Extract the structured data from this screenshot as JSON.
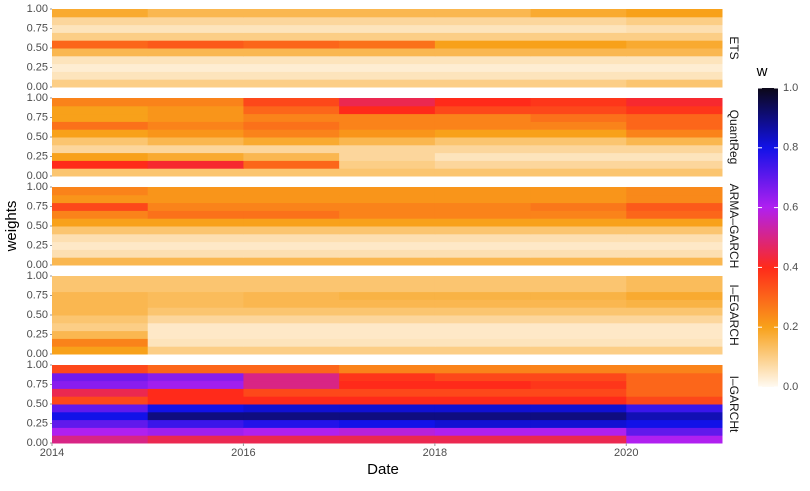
{
  "chart_data": {
    "type": "heatmap",
    "x_label": "Date",
    "y_label": "weights",
    "legend_title": "w",
    "x_bins": [
      2014,
      2015,
      2016,
      2017,
      2018,
      2019,
      2020,
      2021
    ],
    "y_bins": [
      0,
      0.1,
      0.2,
      0.3,
      0.4,
      0.5,
      0.6,
      0.7,
      0.8,
      0.9,
      1.0
    ],
    "xlim": [
      2014,
      2021
    ],
    "xticks": [
      2014,
      2016,
      2018,
      2020
    ],
    "ylim": [
      0,
      1
    ],
    "yticks": [
      {
        "value": 0,
        "label": "0.00"
      },
      {
        "value": 0.25,
        "label": "0.25"
      },
      {
        "value": 0.5,
        "label": "0.50"
      },
      {
        "value": 0.75,
        "label": "0.75"
      },
      {
        "value": 1,
        "label": "1.00"
      }
    ],
    "colorscale": [
      "#fffaf2",
      "#f8a11a",
      "#ff2a1a",
      "#b020f0",
      "#1212e8",
      "#0c0818"
    ],
    "clim": [
      0,
      1
    ],
    "cticks": [
      {
        "value": 0,
        "label": "0.0"
      },
      {
        "value": 0.2,
        "label": "0.2"
      },
      {
        "value": 0.4,
        "label": "0.4"
      },
      {
        "value": 0.6,
        "label": "0.6"
      },
      {
        "value": 0.8,
        "label": "0.8"
      },
      {
        "value": 1,
        "label": "1.0"
      }
    ],
    "facets": [
      {
        "name": "ETS",
        "z": [
          [
            0.1,
            0.1,
            0.1,
            0.1,
            0.1,
            0.1,
            0.12
          ],
          [
            0.05,
            0.05,
            0.05,
            0.05,
            0.05,
            0.05,
            0.05
          ],
          [
            0.03,
            0.03,
            0.03,
            0.03,
            0.03,
            0.03,
            0.03
          ],
          [
            0.05,
            0.05,
            0.05,
            0.05,
            0.05,
            0.05,
            0.05
          ],
          [
            0.15,
            0.15,
            0.15,
            0.15,
            0.15,
            0.15,
            0.15
          ],
          [
            0.3,
            0.32,
            0.3,
            0.28,
            0.2,
            0.2,
            0.18
          ],
          [
            0.1,
            0.1,
            0.1,
            0.1,
            0.1,
            0.1,
            0.1
          ],
          [
            0.05,
            0.05,
            0.05,
            0.05,
            0.05,
            0.05,
            0.06
          ],
          [
            0.08,
            0.08,
            0.08,
            0.08,
            0.08,
            0.08,
            0.1
          ],
          [
            0.18,
            0.15,
            0.15,
            0.15,
            0.15,
            0.18,
            0.2
          ]
        ]
      },
      {
        "name": "QuantReg",
        "z": [
          [
            0.12,
            0.12,
            0.12,
            0.12,
            0.12,
            0.12,
            0.12
          ],
          [
            0.4,
            0.42,
            0.3,
            0.1,
            0.08,
            0.08,
            0.08
          ],
          [
            0.2,
            0.18,
            0.15,
            0.08,
            0.05,
            0.05,
            0.05
          ],
          [
            0.08,
            0.08,
            0.08,
            0.08,
            0.08,
            0.08,
            0.08
          ],
          [
            0.12,
            0.15,
            0.18,
            0.15,
            0.12,
            0.12,
            0.15
          ],
          [
            0.2,
            0.22,
            0.25,
            0.22,
            0.2,
            0.2,
            0.25
          ],
          [
            0.28,
            0.25,
            0.28,
            0.25,
            0.25,
            0.25,
            0.3
          ],
          [
            0.2,
            0.22,
            0.25,
            0.25,
            0.25,
            0.28,
            0.3
          ],
          [
            0.2,
            0.22,
            0.3,
            0.4,
            0.35,
            0.35,
            0.38
          ],
          [
            0.25,
            0.25,
            0.35,
            0.45,
            0.4,
            0.38,
            0.42
          ]
        ]
      },
      {
        "name": "ARMA–GARCH",
        "z": [
          [
            0.15,
            0.15,
            0.15,
            0.15,
            0.15,
            0.15,
            0.15
          ],
          [
            0.06,
            0.06,
            0.06,
            0.06,
            0.06,
            0.06,
            0.06
          ],
          [
            0.04,
            0.04,
            0.04,
            0.04,
            0.04,
            0.04,
            0.04
          ],
          [
            0.06,
            0.06,
            0.06,
            0.06,
            0.06,
            0.06,
            0.06
          ],
          [
            0.12,
            0.12,
            0.12,
            0.12,
            0.12,
            0.12,
            0.12
          ],
          [
            0.2,
            0.2,
            0.2,
            0.2,
            0.2,
            0.2,
            0.2
          ],
          [
            0.25,
            0.28,
            0.28,
            0.25,
            0.25,
            0.25,
            0.3
          ],
          [
            0.35,
            0.25,
            0.25,
            0.25,
            0.25,
            0.27,
            0.32
          ],
          [
            0.22,
            0.22,
            0.22,
            0.22,
            0.22,
            0.22,
            0.24
          ],
          [
            0.25,
            0.22,
            0.22,
            0.22,
            0.22,
            0.22,
            0.24
          ]
        ]
      },
      {
        "name": "I–EGARCH",
        "z": [
          [
            0.2,
            0.1,
            0.1,
            0.1,
            0.1,
            0.1,
            0.1
          ],
          [
            0.25,
            0.05,
            0.05,
            0.05,
            0.05,
            0.05,
            0.05
          ],
          [
            0.15,
            0.04,
            0.04,
            0.04,
            0.04,
            0.04,
            0.04
          ],
          [
            0.1,
            0.04,
            0.04,
            0.04,
            0.04,
            0.04,
            0.04
          ],
          [
            0.12,
            0.08,
            0.08,
            0.08,
            0.08,
            0.08,
            0.08
          ],
          [
            0.15,
            0.12,
            0.12,
            0.12,
            0.12,
            0.12,
            0.12
          ],
          [
            0.15,
            0.14,
            0.15,
            0.15,
            0.15,
            0.15,
            0.16
          ],
          [
            0.15,
            0.14,
            0.15,
            0.16,
            0.16,
            0.16,
            0.18
          ],
          [
            0.12,
            0.12,
            0.12,
            0.12,
            0.12,
            0.12,
            0.14
          ],
          [
            0.12,
            0.12,
            0.12,
            0.12,
            0.12,
            0.12,
            0.14
          ]
        ]
      },
      {
        "name": "I–GARCHt",
        "z": [
          [
            0.5,
            0.45,
            0.45,
            0.45,
            0.45,
            0.45,
            0.6
          ],
          [
            0.6,
            0.62,
            0.6,
            0.58,
            0.6,
            0.6,
            0.7
          ],
          [
            0.7,
            0.75,
            0.78,
            0.8,
            0.82,
            0.82,
            0.8
          ],
          [
            0.8,
            0.9,
            0.9,
            0.9,
            0.9,
            0.9,
            0.85
          ],
          [
            0.7,
            0.8,
            0.82,
            0.82,
            0.82,
            0.82,
            0.75
          ],
          [
            0.35,
            0.4,
            0.4,
            0.4,
            0.4,
            0.4,
            0.35
          ],
          [
            0.45,
            0.4,
            0.35,
            0.35,
            0.35,
            0.35,
            0.3
          ],
          [
            0.65,
            0.62,
            0.5,
            0.4,
            0.4,
            0.38,
            0.3
          ],
          [
            0.68,
            0.65,
            0.5,
            0.38,
            0.35,
            0.35,
            0.3
          ],
          [
            0.35,
            0.3,
            0.3,
            0.25,
            0.25,
            0.25,
            0.25
          ]
        ]
      }
    ]
  }
}
